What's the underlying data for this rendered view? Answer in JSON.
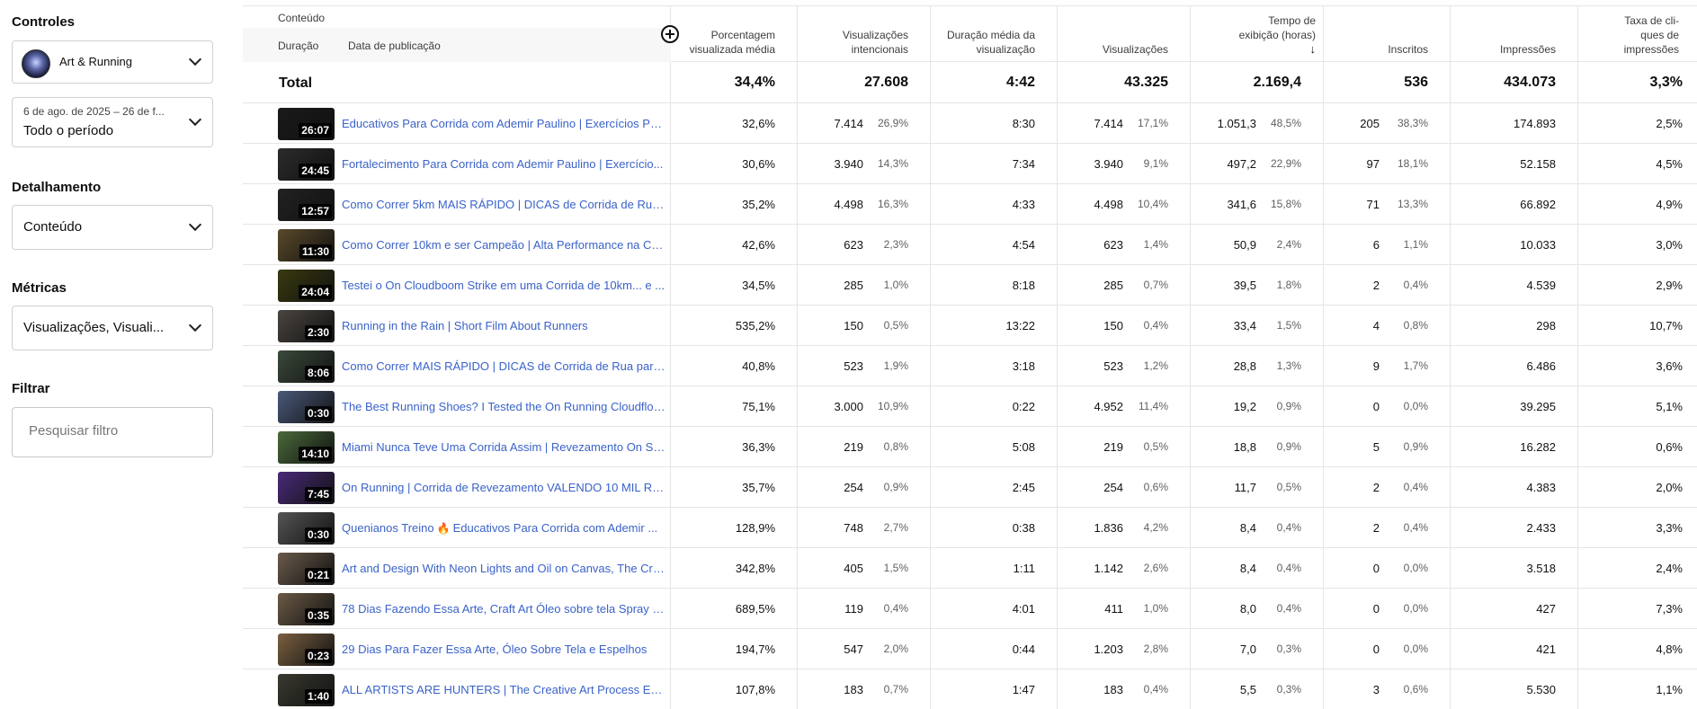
{
  "sidebar": {
    "controles_title": "Controles",
    "channel": {
      "name": "Art & Running"
    },
    "period": {
      "range": "6 de ago. de 2025 – 26 de f...",
      "label": "Todo o período"
    },
    "detalhamento_title": "Detalhamento",
    "detalhamento_value": "Conteúdo",
    "metricas_title": "Métricas",
    "metricas_value": "Visualizações, Visuali...",
    "filtrar_title": "Filtrar",
    "filter_placeholder": "Pesquisar filtro"
  },
  "table": {
    "content_header": "Conteúdo",
    "tab_duracao": "Duração",
    "tab_data": "Data de publicação",
    "columns": {
      "pvm": "Porcentagem visualizada média",
      "vi": "Visualizações intencionais",
      "dmv": "Duração média da visualização",
      "vis": "Visualizações",
      "te": "Tempo de exibição (horas)",
      "ins": "Inscritos",
      "imp": "Impressões",
      "ctr": "Taxa de cli-ques de impressões"
    },
    "total": {
      "label": "Total",
      "pvm": "34,4%",
      "vi": "27.608",
      "dmv": "4:42",
      "vis": "43.325",
      "te": "2.169,4",
      "ins": "536",
      "imp": "434.073",
      "ctr": "3,3%"
    },
    "rows": [
      {
        "dur": "26:07",
        "title": "Educativos Para Corrida com Ademir Paulino | Exercícios Pa...",
        "pvm": "32,6%",
        "vi": "7.414",
        "vip": "26,9%",
        "dmv": "8:30",
        "vis": "7.414",
        "visp": "17,1%",
        "te": "1.051,3",
        "tep": "48,5%",
        "ins": "205",
        "insp": "38,3%",
        "imp": "174.893",
        "ctr": "2,5%",
        "tc": "#1a1a1a"
      },
      {
        "dur": "24:45",
        "title": "Fortalecimento Para Corrida com Ademir Paulino | Exercício...",
        "pvm": "30,6%",
        "vi": "3.940",
        "vip": "14,3%",
        "dmv": "7:34",
        "vis": "3.940",
        "visp": "9,1%",
        "te": "497,2",
        "tep": "22,9%",
        "ins": "97",
        "insp": "18,1%",
        "imp": "52.158",
        "ctr": "4,5%",
        "tc": "#2b2b2b"
      },
      {
        "dur": "12:57",
        "title": "Como Correr 5km MAIS RÁPIDO | DICAS de Corrida de Rua ...",
        "pvm": "35,2%",
        "vi": "4.498",
        "vip": "16,3%",
        "dmv": "4:33",
        "vis": "4.498",
        "visp": "10,4%",
        "te": "341,6",
        "tep": "15,8%",
        "ins": "71",
        "insp": "13,3%",
        "imp": "66.892",
        "ctr": "4,9%",
        "tc": "#222222"
      },
      {
        "dur": "11:30",
        "title": "Como Correr 10km e ser Campeão | Alta Performance na Co...",
        "pvm": "42,6%",
        "vi": "623",
        "vip": "2,3%",
        "dmv": "4:54",
        "vis": "623",
        "visp": "1,4%",
        "te": "50,9",
        "tep": "2,4%",
        "ins": "6",
        "insp": "1,1%",
        "imp": "10.033",
        "ctr": "3,0%",
        "tc": "#5a4a2a"
      },
      {
        "dur": "24:04",
        "title": "Testei o On Cloudboom Strike em uma Corrida de 10km... e ...",
        "pvm": "34,5%",
        "vi": "285",
        "vip": "1,0%",
        "dmv": "8:18",
        "vis": "285",
        "visp": "0,7%",
        "te": "39,5",
        "tep": "1,8%",
        "ins": "2",
        "insp": "0,4%",
        "imp": "4.539",
        "ctr": "2,9%",
        "tc": "#3a3a10"
      },
      {
        "dur": "2:30",
        "title": "Running in the Rain | Short Film About Runners",
        "pvm": "535,2%",
        "vi": "150",
        "vip": "0,5%",
        "dmv": "13:22",
        "vis": "150",
        "visp": "0,4%",
        "te": "33,4",
        "tep": "1,5%",
        "ins": "4",
        "insp": "0,8%",
        "imp": "298",
        "ctr": "10,7%",
        "tc": "#4a4540"
      },
      {
        "dur": "8:06",
        "title": "Como Correr MAIS RÁPIDO | DICAS de Corrida de Rua para ...",
        "pvm": "40,8%",
        "vi": "523",
        "vip": "1,9%",
        "dmv": "3:18",
        "vis": "523",
        "visp": "1,2%",
        "te": "28,8",
        "tep": "1,3%",
        "ins": "9",
        "insp": "1,7%",
        "imp": "6.486",
        "ctr": "3,6%",
        "tc": "#3b4a3b"
      },
      {
        "dur": "0:30",
        "title": "The Best Running Shoes? I Tested the On Running Cloudflow...",
        "pvm": "75,1%",
        "vi": "3.000",
        "vip": "10,9%",
        "dmv": "0:22",
        "vis": "4.952",
        "visp": "11,4%",
        "te": "19,2",
        "tep": "0,9%",
        "ins": "0",
        "insp": "0,0%",
        "imp": "39.295",
        "ctr": "5,1%",
        "tc": "#4a5a7a"
      },
      {
        "dur": "14:10",
        "title": "Miami Nunca Teve Uma Corrida Assim | Revezamento On Sq...",
        "pvm": "36,3%",
        "vi": "219",
        "vip": "0,8%",
        "dmv": "5:08",
        "vis": "219",
        "visp": "0,5%",
        "te": "18,8",
        "tep": "0,9%",
        "ins": "5",
        "insp": "0,9%",
        "imp": "16.282",
        "ctr": "0,6%",
        "tc": "#4a6a3a"
      },
      {
        "dur": "7:45",
        "title": "On Running | Corrida de Revezamento VALENDO 10 MIL REA...",
        "pvm": "35,7%",
        "vi": "254",
        "vip": "0,9%",
        "dmv": "2:45",
        "vis": "254",
        "visp": "0,6%",
        "te": "11,7",
        "tep": "0,5%",
        "ins": "2",
        "insp": "0,4%",
        "imp": "4.383",
        "ctr": "2,0%",
        "tc": "#4a2a7a"
      },
      {
        "dur": "0:30",
        "title": "Quenianos Treino",
        "title2": "Educativos Para Corrida com Ademir ...",
        "pvm": "128,9%",
        "vi": "748",
        "vip": "2,7%",
        "dmv": "0:38",
        "vis": "1.836",
        "visp": "4,2%",
        "te": "8,4",
        "tep": "0,4%",
        "ins": "2",
        "insp": "0,4%",
        "imp": "2.433",
        "ctr": "3,3%",
        "tc": "#555555"
      },
      {
        "dur": "0:21",
        "title": "Art and Design With Neon Lights and Oil on Canvas, The Cre...",
        "pvm": "342,8%",
        "vi": "405",
        "vip": "1,5%",
        "dmv": "1:11",
        "vis": "1.142",
        "visp": "2,6%",
        "te": "8,4",
        "tep": "0,4%",
        "ins": "0",
        "insp": "0,0%",
        "imp": "3.518",
        "ctr": "2,4%",
        "tc": "#6a5a4a"
      },
      {
        "dur": "0:35",
        "title": "78 Dias Fazendo Essa Arte, Craft Art Óleo sobre tela Spray e ...",
        "pvm": "689,5%",
        "vi": "119",
        "vip": "0,4%",
        "dmv": "4:01",
        "vis": "411",
        "visp": "1,0%",
        "te": "8,0",
        "tep": "0,4%",
        "ins": "0",
        "insp": "0,0%",
        "imp": "427",
        "ctr": "7,3%",
        "tc": "#6b5a45"
      },
      {
        "dur": "0:23",
        "title": "29 Dias Para Fazer Essa Arte, Óleo Sobre Tela e Espelhos",
        "pvm": "194,7%",
        "vi": "547",
        "vip": "2,0%",
        "dmv": "0:44",
        "vis": "1.203",
        "visp": "2,8%",
        "te": "7,0",
        "tep": "0,3%",
        "ins": "0",
        "insp": "0,0%",
        "imp": "421",
        "ctr": "4,8%",
        "tc": "#7a6040"
      },
      {
        "dur": "1:40",
        "title": "ALL ARTISTS ARE HUNTERS | The Creative Art Process Ep.1",
        "pvm": "107,8%",
        "vi": "183",
        "vip": "0,7%",
        "dmv": "1:47",
        "vis": "183",
        "visp": "0,4%",
        "te": "5,5",
        "tep": "0,3%",
        "ins": "3",
        "insp": "0,6%",
        "imp": "5.530",
        "ctr": "1,1%",
        "tc": "#3a3a30"
      }
    ]
  },
  "colors": {
    "link": "#3a62c9",
    "border": "#e5e5e5",
    "muted": "#606060"
  },
  "icons": {
    "sort": "arrow-down-icon",
    "add_column": "add-circle-icon",
    "fire": "fire-icon"
  }
}
